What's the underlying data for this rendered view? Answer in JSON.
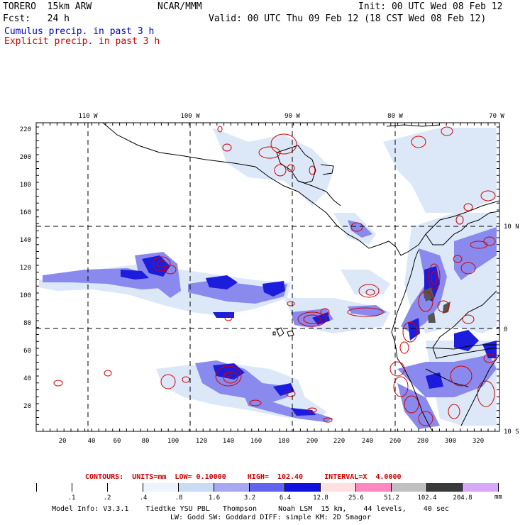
{
  "header": {
    "model": "TORERO  15km ARW",
    "center": "NCAR/MMM",
    "init": "Init: 00 UTC Wed 08 Feb 12",
    "fcst": "Fcst:   24 h",
    "valid": "Valid: 00 UTC Thu 09 Feb 12 (18 CST Wed 08 Feb 12)",
    "field1": "Cumulus precip. in past 3 h",
    "field2": "Explicit precip. in past 3 h",
    "field1_color": "#0000cc",
    "field2_color": "#cc0000"
  },
  "map": {
    "lon_labels": [
      "110 W",
      "100 W",
      "90 W",
      "80 W",
      "70 W"
    ],
    "lat_labels": [
      "10 N",
      "0",
      "10 S"
    ],
    "x_ticks": [
      "20",
      "40",
      "60",
      "80",
      "100",
      "120",
      "140",
      "160",
      "180",
      "200",
      "220",
      "240",
      "260",
      "280",
      "300",
      "320"
    ],
    "y_ticks": [
      "20",
      "40",
      "60",
      "80",
      "100",
      "120",
      "140",
      "160",
      "180",
      "200",
      "220"
    ]
  },
  "contours": {
    "text": "CONTOURS:  UNITS=mm  LOW= 0.10000     HIGH=  102.40     INTERVAL=X  4.0000",
    "color": "#cc0000"
  },
  "colorbar": {
    "labels": [
      ".1",
      ".2",
      ".4",
      ".8",
      "1.6",
      "3.2",
      "6.4",
      "12.8",
      "25.6",
      "51.2",
      "102.4",
      "204.8"
    ],
    "unit": "mm",
    "colors": [
      "#ffffff",
      "#ffffff",
      "#ffffff",
      "#eef4fb",
      "#c9dcf4",
      "#a7a7f2",
      "#6262f0",
      "#1010e0",
      "#ffe0e0",
      "#ff88c0",
      "#c0c0c0",
      "#3a3a3a",
      "#d8a8f8"
    ]
  },
  "footer": {
    "line1": "Model Info: V3.3.1    Tiedtke YSU PBL   Thompson     Noah LSM  15 km,    44 levels,    40 sec",
    "line2": "LW: Godd SW: Goddard DIFF: simple KM: 2D Smagor"
  }
}
